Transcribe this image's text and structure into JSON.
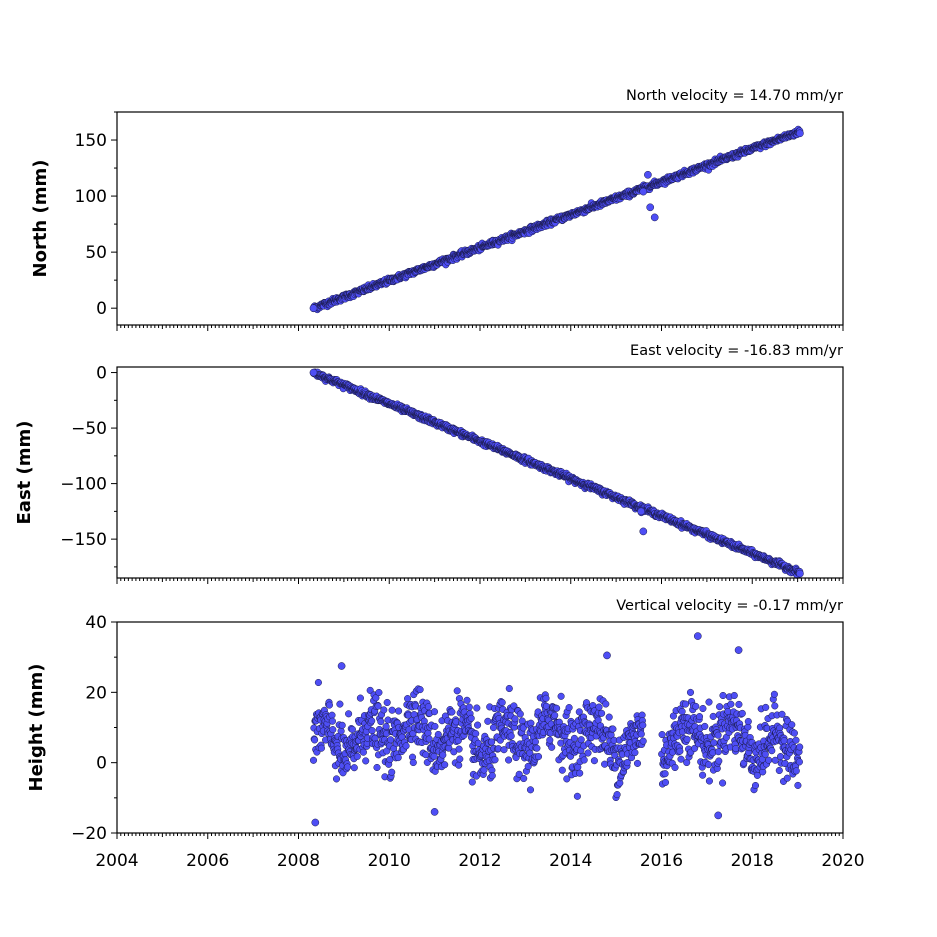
{
  "chart_data": [
    {
      "type": "scatter",
      "title": "North velocity = 14.70 mm/yr",
      "ylabel": "North (mm)",
      "xlim": [
        2004,
        2020
      ],
      "ylim": [
        -15,
        175
      ],
      "yticks": [
        0,
        50,
        100,
        150
      ],
      "ytick_labels": [
        "0",
        "50",
        "100",
        "150"
      ],
      "velocity_mm_per_yr": 14.7,
      "intercept_mm": 0,
      "start_year": 2008.33,
      "anchor_points": [
        [
          2008.33,
          0
        ],
        [
          2015.6,
          104
        ],
        [
          2015.7,
          119
        ],
        [
          2015.75,
          90
        ],
        [
          2015.85,
          81
        ],
        [
          2019.05,
          156
        ]
      ]
    },
    {
      "type": "scatter",
      "title": "East velocity = -16.83 mm/yr",
      "ylabel": "East (mm)",
      "xlim": [
        2004,
        2020
      ],
      "ylim": [
        -185,
        5
      ],
      "yticks": [
        0,
        -50,
        -100,
        -150
      ],
      "ytick_labels": [
        "0",
        "−50",
        "−100",
        "−150"
      ],
      "velocity_mm_per_yr": -16.83,
      "intercept_mm": 0,
      "start_year": 2008.33,
      "anchor_points": [
        [
          2008.33,
          0
        ],
        [
          2015.55,
          -125
        ],
        [
          2015.6,
          -143
        ],
        [
          2019.05,
          -181
        ]
      ]
    },
    {
      "type": "scatter",
      "title": "Vertical velocity = -0.17 mm/yr",
      "ylabel": "Height (mm)",
      "xlim": [
        2004,
        2020
      ],
      "ylim": [
        -20,
        40
      ],
      "yticks": [
        -20,
        0,
        20,
        40
      ],
      "ytick_labels": [
        "−20",
        "0",
        "20",
        "40"
      ],
      "velocity_mm_per_yr": -0.17,
      "mean_mm": 8,
      "start_year": 2008.33,
      "gap_years": [
        2015.6,
        2016.0
      ],
      "anchor_points": [
        [
          2008.37,
          -17
        ],
        [
          2008.95,
          27.5
        ],
        [
          2014.8,
          30.5
        ],
        [
          2016.8,
          36
        ],
        [
          2017.7,
          32
        ],
        [
          2011.0,
          -14
        ],
        [
          2017.25,
          -15
        ]
      ]
    }
  ],
  "shared_x_axis": {
    "ticks": [
      2004,
      2006,
      2008,
      2010,
      2012,
      2014,
      2016,
      2018,
      2020
    ],
    "tick_labels": [
      "2004",
      "2006",
      "2008",
      "2010",
      "2012",
      "2014",
      "2016",
      "2018",
      "2020"
    ],
    "end_year": 2019.05
  },
  "colors": {
    "marker_fill": "#4e4ef5",
    "marker_edge": "#1a1a4a"
  }
}
